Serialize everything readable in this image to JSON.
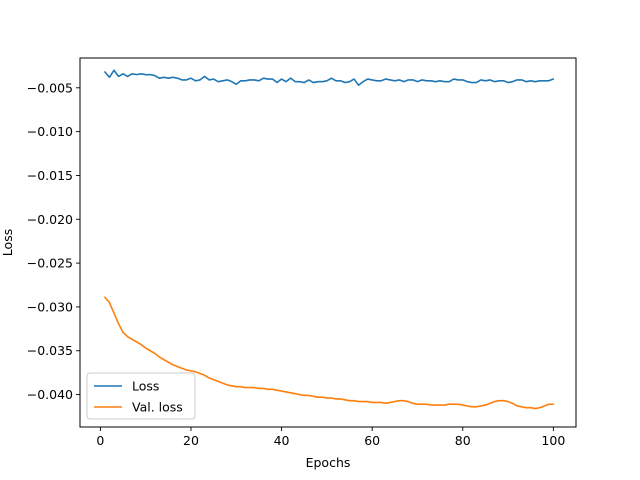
{
  "chart_data": {
    "type": "line",
    "title": "",
    "xlabel": "Epochs",
    "ylabel": "Loss",
    "xlim": [
      -4.5,
      105
    ],
    "ylim": [
      -0.0437,
      -0.0016
    ],
    "xticks": [
      0,
      20,
      40,
      60,
      80,
      100
    ],
    "xtick_labels": [
      "0",
      "20",
      "40",
      "60",
      "80",
      "100"
    ],
    "yticks": [
      -0.005,
      -0.01,
      -0.015,
      -0.02,
      -0.025,
      -0.03,
      -0.035,
      -0.04
    ],
    "ytick_labels": [
      "−0.005",
      "−0.010",
      "−0.015",
      "−0.020",
      "−0.025",
      "−0.030",
      "−0.035",
      "−0.040"
    ],
    "grid": false,
    "legend_position": "lower-left",
    "x": [
      1,
      2,
      3,
      4,
      5,
      6,
      7,
      8,
      9,
      10,
      11,
      12,
      13,
      14,
      15,
      16,
      17,
      18,
      19,
      20,
      21,
      22,
      23,
      24,
      25,
      26,
      27,
      28,
      29,
      30,
      31,
      32,
      33,
      34,
      35,
      36,
      37,
      38,
      39,
      40,
      41,
      42,
      43,
      44,
      45,
      46,
      47,
      48,
      49,
      50,
      51,
      52,
      53,
      54,
      55,
      56,
      57,
      58,
      59,
      60,
      61,
      62,
      63,
      64,
      65,
      66,
      67,
      68,
      69,
      70,
      71,
      72,
      73,
      74,
      75,
      76,
      77,
      78,
      79,
      80,
      81,
      82,
      83,
      84,
      85,
      86,
      87,
      88,
      89,
      90,
      91,
      92,
      93,
      94,
      95,
      96,
      97,
      98,
      99,
      100
    ],
    "series": [
      {
        "name": "Loss",
        "color": "#1f77b4",
        "values": [
          -0.0032,
          -0.0038,
          -0.003,
          -0.0037,
          -0.0034,
          -0.0037,
          -0.0034,
          -0.0035,
          -0.0034,
          -0.0035,
          -0.0035,
          -0.0036,
          -0.0039,
          -0.0038,
          -0.0039,
          -0.0038,
          -0.0039,
          -0.0041,
          -0.0041,
          -0.0039,
          -0.0042,
          -0.0041,
          -0.0037,
          -0.0041,
          -0.004,
          -0.0043,
          -0.0042,
          -0.0041,
          -0.0043,
          -0.0046,
          -0.0042,
          -0.0042,
          -0.0041,
          -0.0041,
          -0.0042,
          -0.0039,
          -0.004,
          -0.004,
          -0.0044,
          -0.004,
          -0.0043,
          -0.0039,
          -0.0043,
          -0.0043,
          -0.0044,
          -0.0041,
          -0.0044,
          -0.0043,
          -0.0043,
          -0.0042,
          -0.0039,
          -0.0042,
          -0.0042,
          -0.0044,
          -0.0043,
          -0.004,
          -0.0047,
          -0.0043,
          -0.004,
          -0.0041,
          -0.0042,
          -0.0042,
          -0.004,
          -0.0041,
          -0.0042,
          -0.0041,
          -0.0043,
          -0.0041,
          -0.0041,
          -0.0043,
          -0.0041,
          -0.0042,
          -0.0042,
          -0.0043,
          -0.0042,
          -0.0043,
          -0.0043,
          -0.004,
          -0.0041,
          -0.0041,
          -0.0043,
          -0.0044,
          -0.0044,
          -0.0041,
          -0.0042,
          -0.0041,
          -0.0043,
          -0.0042,
          -0.0042,
          -0.0044,
          -0.0043,
          -0.0041,
          -0.0041,
          -0.0043,
          -0.0042,
          -0.0043,
          -0.0042,
          -0.0042,
          -0.0042,
          -0.004
        ]
      },
      {
        "name": "Val. loss",
        "color": "#ff7f0e",
        "values": [
          -0.0289,
          -0.0295,
          -0.0307,
          -0.0319,
          -0.0329,
          -0.0334,
          -0.0337,
          -0.034,
          -0.0343,
          -0.0347,
          -0.035,
          -0.0353,
          -0.0357,
          -0.036,
          -0.0363,
          -0.0366,
          -0.0368,
          -0.037,
          -0.0372,
          -0.0373,
          -0.0374,
          -0.0376,
          -0.0378,
          -0.0381,
          -0.0383,
          -0.0385,
          -0.0387,
          -0.0389,
          -0.039,
          -0.0391,
          -0.0391,
          -0.0392,
          -0.0392,
          -0.0392,
          -0.0393,
          -0.0393,
          -0.0394,
          -0.0394,
          -0.0395,
          -0.0396,
          -0.0397,
          -0.0398,
          -0.0399,
          -0.04,
          -0.0401,
          -0.0401,
          -0.0402,
          -0.0403,
          -0.0403,
          -0.0404,
          -0.0404,
          -0.0405,
          -0.0405,
          -0.0406,
          -0.0407,
          -0.0407,
          -0.0408,
          -0.0408,
          -0.0408,
          -0.0409,
          -0.0409,
          -0.0409,
          -0.041,
          -0.0409,
          -0.0408,
          -0.0407,
          -0.0407,
          -0.0408,
          -0.041,
          -0.0411,
          -0.0411,
          -0.0411,
          -0.0412,
          -0.0412,
          -0.0412,
          -0.0412,
          -0.0411,
          -0.0411,
          -0.0411,
          -0.0412,
          -0.0413,
          -0.0414,
          -0.0414,
          -0.0413,
          -0.0412,
          -0.041,
          -0.0408,
          -0.0407,
          -0.0407,
          -0.0408,
          -0.041,
          -0.0413,
          -0.0414,
          -0.0415,
          -0.0415,
          -0.0416,
          -0.0415,
          -0.0413,
          -0.0411,
          -0.0411
        ]
      }
    ]
  }
}
